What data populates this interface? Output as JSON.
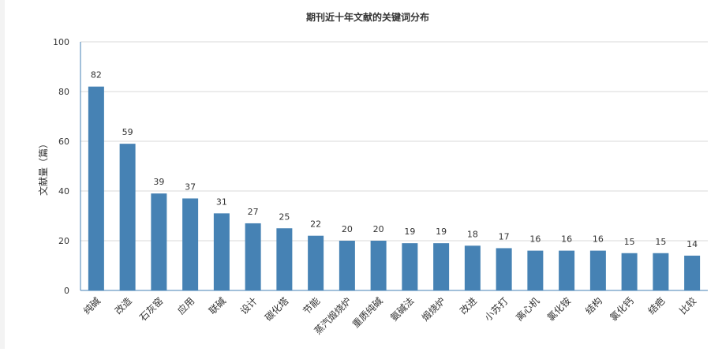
{
  "chart_data": {
    "type": "bar",
    "title": "期刊近十年文献的关键词分布",
    "xlabel": "",
    "ylabel": "文献量（篇）",
    "ylim": [
      0,
      100
    ],
    "yticks": [
      0,
      20,
      40,
      60,
      80,
      100
    ],
    "grid": true,
    "legend": "none",
    "categories": [
      "纯碱",
      "改造",
      "石灰窑",
      "应用",
      "联碱",
      "设计",
      "碳化塔",
      "节能",
      "蒸汽煅烧炉",
      "重质纯碱",
      "氨碱法",
      "煅烧炉",
      "改进",
      "小苏打",
      "离心机",
      "氯化铵",
      "结构",
      "氯化钙",
      "结疤",
      "比较"
    ],
    "values": [
      82,
      59,
      39,
      37,
      31,
      27,
      25,
      22,
      20,
      20,
      19,
      19,
      18,
      17,
      16,
      16,
      16,
      15,
      15,
      14
    ],
    "bar_color": "#4682b4",
    "axis_color": "#4682b4",
    "grid_color": "#d9d9d9"
  }
}
